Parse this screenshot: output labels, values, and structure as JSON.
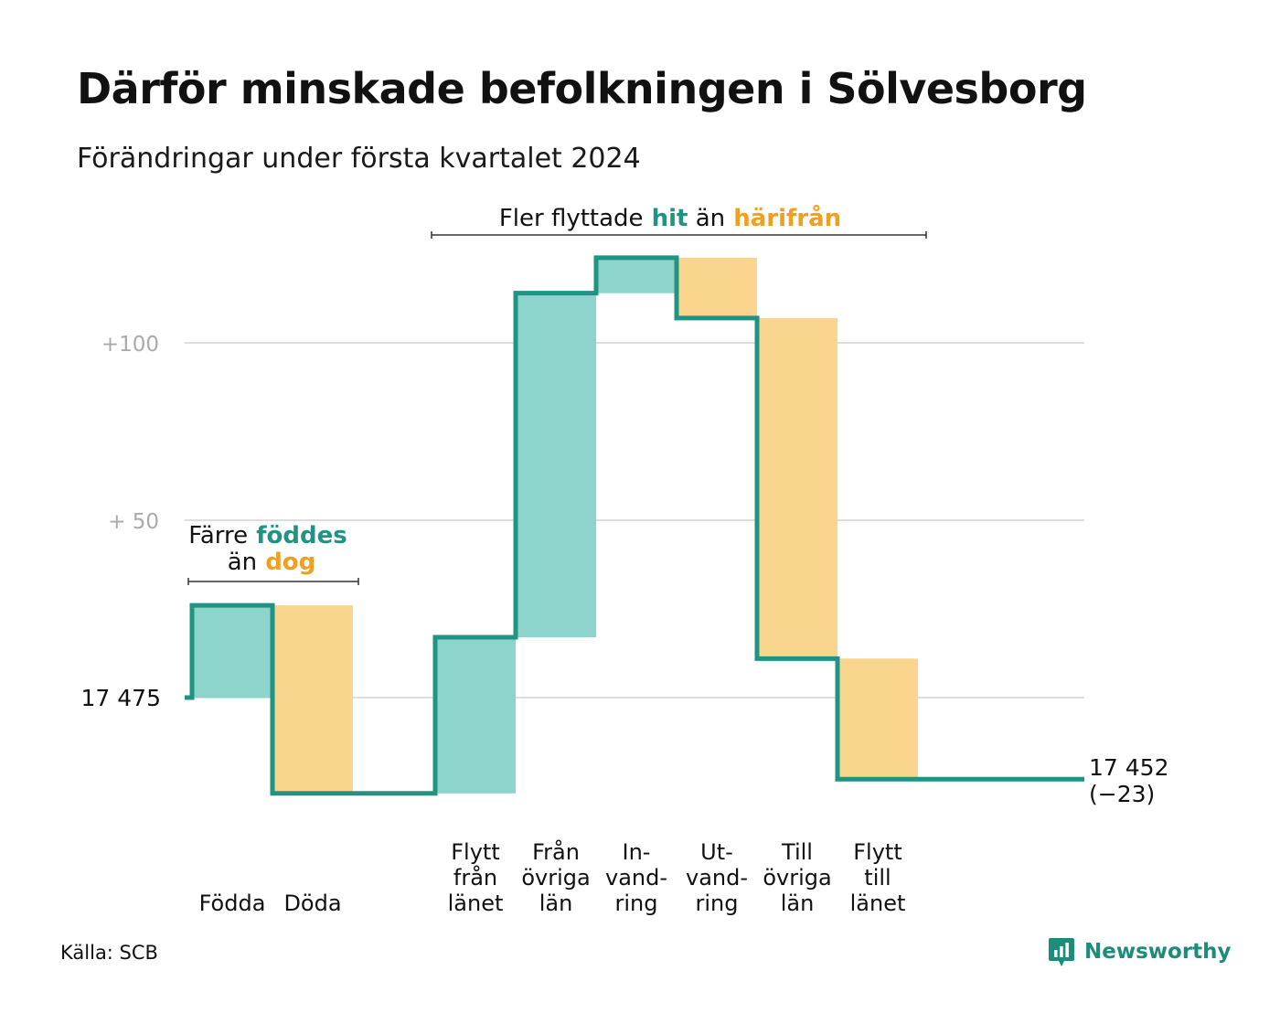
{
  "title": "Därför minskade befolkningen i Sölvesborg",
  "subtitle": "Förändringar under första kvartalet 2024",
  "source": "Källa: SCB",
  "brand": "Newsworthy",
  "colors": {
    "increase": "#8dd5cc",
    "decrease": "#fad58e",
    "line": "#1f9483",
    "accent_teal": "#1f9483",
    "accent_orange": "#f0a020",
    "grid": "#dddddd",
    "muted_text": "#aaaaaa",
    "bracket": "#333333"
  },
  "annotations": {
    "births_deaths": {
      "line1": "Färre",
      "hl1": "föddes",
      "line2": "än",
      "hl2": "dog"
    },
    "migration": {
      "pre": "Fler flyttade",
      "hl1": "hit",
      "mid": "än",
      "hl2": "härifrån"
    }
  },
  "chart_data": {
    "type": "waterfall",
    "start_value": 17475,
    "start_label": "17  475",
    "end_value": 17452,
    "end_label": "17 452",
    "end_change_label": "(−23)",
    "yticks": [
      {
        "value": 100,
        "label": "+100"
      },
      {
        "value": 50,
        "label": "+  50"
      },
      {
        "value": 0,
        "label": "17  475"
      }
    ],
    "ylim": [
      -30,
      125
    ],
    "groups": [
      {
        "items": [
          {
            "label": [
              "Födda"
            ],
            "value": 26
          },
          {
            "label": [
              "Döda"
            ],
            "value": -53
          }
        ]
      },
      {
        "items": [
          {
            "label": [
              "Flytt",
              "från",
              "länet"
            ],
            "value": 44
          },
          {
            "label": [
              "Från",
              "övriga",
              "län"
            ],
            "value": 97
          },
          {
            "label": [
              "In-",
              "vand-",
              "ring"
            ],
            "value": 10
          },
          {
            "label": [
              "Ut-",
              "vand-",
              "ring"
            ],
            "value": -17
          },
          {
            "label": [
              "Till",
              "övriga",
              "län"
            ],
            "value": -96
          },
          {
            "label": [
              "Flytt",
              "till",
              "länet"
            ],
            "value": -34
          }
        ]
      }
    ]
  }
}
